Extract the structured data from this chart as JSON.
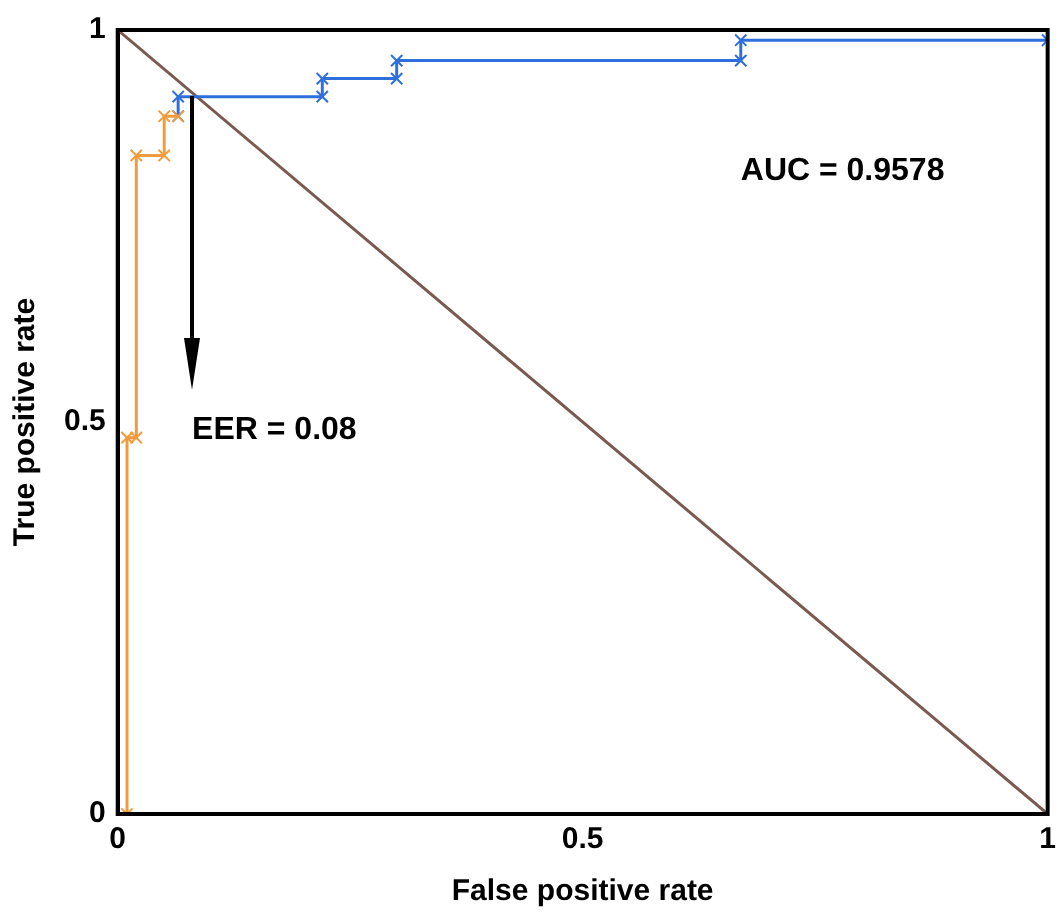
{
  "chart_data": {
    "type": "line",
    "xlabel": "False positive rate",
    "ylabel": "True positive rate",
    "xlim": [
      0,
      1
    ],
    "ylim": [
      0,
      1
    ],
    "xticks": [
      0,
      0.5,
      1
    ],
    "yticks": [
      0,
      0.5,
      1
    ],
    "grid": false,
    "legend": false,
    "marker": "cross",
    "line_style": "solid",
    "series": [
      {
        "color": "#f39b3c",
        "x": [
          0.01,
          0.01,
          0.02,
          0.02,
          0.05,
          0.05,
          0.065
        ],
        "values": [
          0,
          0.48,
          0.48,
          0.84,
          0.84,
          0.89,
          0.89
        ]
      },
      {
        "color": "#2f6fdc",
        "x": [
          0.065,
          0.065,
          0.22,
          0.22,
          0.3,
          0.3,
          0.67,
          0.67,
          1
        ],
        "values": [
          0.89,
          0.915,
          0.915,
          0.938,
          0.938,
          0.961,
          0.961,
          0.987,
          0.987
        ]
      },
      {
        "color": "#7a5a50",
        "marker": "none",
        "x": [
          0,
          1
        ],
        "values": [
          1,
          0
        ]
      }
    ],
    "annotations": [
      "EER = 0.08",
      "AUC = 0.9578"
    ]
  }
}
